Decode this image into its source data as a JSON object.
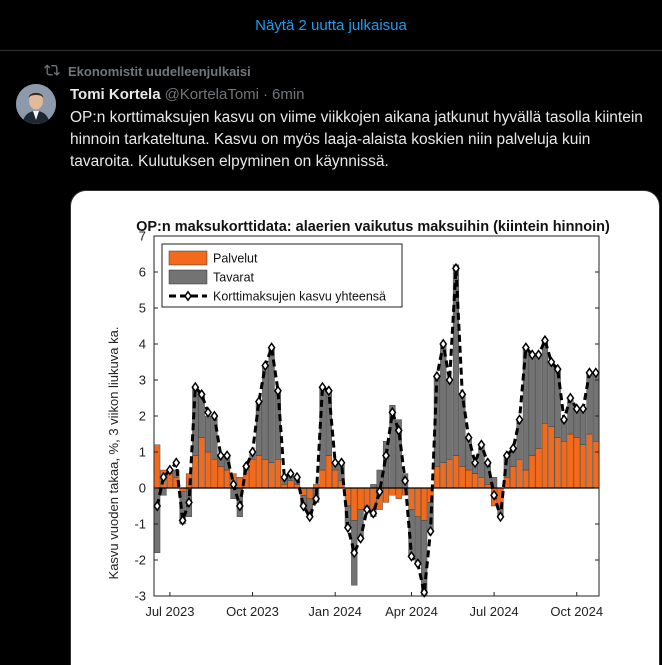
{
  "banner": {
    "show_new": "Näytä 2 uutta julkaisua"
  },
  "repost": {
    "label": "Ekonomistit uudelleenjulkaisi"
  },
  "tweet": {
    "author_name": "Tomi Kortela",
    "handle": "@KortelaTomi",
    "separator": "·",
    "time": "6min",
    "text": "OP:n korttimaksujen kasvu on viime viikkojen aikana jatkunut hyvällä tasolla kiintein hinnoin tarkateltuna. Kasvu on myös laaja-alaista koskien niin palveluja kuin tavaroita. Kulutuksen elpyminen on käynnissä."
  },
  "colors": {
    "accent": "#1d9bf0",
    "services": "#f26b1d",
    "goods": "#737373",
    "total": "#000000"
  },
  "chart_data": {
    "type": "bar",
    "title": "OP:n maksukorttidata: alaerien vaikutus maksuihin (kiintein hinnoin)",
    "ylabel": "Kasvu vuoden takaa, %, 3 viikon liukuva ka.",
    "ylim": [
      -3,
      7
    ],
    "yticks": [
      "-3",
      "-2",
      "-1",
      "0",
      "1",
      "2",
      "3",
      "4",
      "5",
      "6",
      "7"
    ],
    "xtick_labels": [
      "Jul 2023",
      "Oct 2023",
      "Jan 2024",
      "Apr 2024",
      "Jul 2024",
      "Oct 2024"
    ],
    "xtick_index": [
      2,
      15,
      28,
      40,
      53,
      66
    ],
    "legend": [
      "Palvelut",
      "Tavarat",
      "Korttimaksujen kasvu yhteensä"
    ],
    "legend_position": "top-left",
    "series": [
      {
        "name": "Palvelut",
        "values": [
          1.2,
          0.5,
          0.4,
          0.3,
          -0.1,
          0.4,
          0.9,
          1.4,
          1.0,
          0.8,
          0.6,
          0.5,
          0.4,
          0.3,
          0.5,
          0.8,
          0.9,
          0.8,
          0.7,
          0.8,
          0.1,
          0.2,
          0.1,
          -0.2,
          -0.3,
          0.1,
          0.5,
          0.9,
          0.5,
          0.2,
          -0.5,
          -0.9,
          -0.6,
          -0.5,
          -0.8,
          -0.6,
          -0.4,
          -0.2,
          -0.3,
          -0.2,
          -0.6,
          -0.8,
          -0.9,
          -0.4,
          0.6,
          0.7,
          0.8,
          0.9,
          0.6,
          0.5,
          0.4,
          0.3,
          0.1,
          -0.5,
          -0.6,
          0.3,
          0.6,
          0.8,
          0.5,
          0.9,
          1.1,
          1.8,
          1.7,
          1.4,
          1.3,
          1.5,
          1.4,
          1.2,
          1.5,
          1.3
        ]
      },
      {
        "name": "Tavarat",
        "values": [
          -1.8,
          -0.2,
          0.1,
          0.2,
          -0.9,
          -0.8,
          1.9,
          1.2,
          1.0,
          1.2,
          0.3,
          0.4,
          -0.3,
          -0.8,
          0.1,
          0.2,
          1.5,
          2.6,
          3.2,
          1.9,
          0.2,
          0.2,
          0.2,
          -0.3,
          -0.5,
          -0.4,
          2.3,
          1.8,
          0.2,
          0.5,
          -0.6,
          -1.8,
          -0.8,
          -0.1,
          0.1,
          0.5,
          1.3,
          2.3,
          1.9,
          0.4,
          -1.3,
          -1.3,
          -2.1,
          -0.8,
          2.5,
          3.3,
          2.2,
          5.3,
          2.0,
          0.9,
          0.3,
          0.9,
          0.6,
          0.3,
          -0.2,
          0.6,
          0.5,
          1.1,
          3.4,
          2.8,
          2.6,
          2.3,
          1.8,
          1.9,
          0.6,
          1.0,
          0.8,
          1.0,
          1.7,
          1.9
        ]
      },
      {
        "name": "Korttimaksujen kasvu yhteensä",
        "values": [
          -0.5,
          0.3,
          0.5,
          0.7,
          -0.9,
          -0.4,
          2.8,
          2.6,
          2.1,
          2.0,
          0.9,
          0.9,
          0.1,
          -0.5,
          0.6,
          1.0,
          2.4,
          3.4,
          3.9,
          2.7,
          0.3,
          0.4,
          0.3,
          -0.5,
          -0.8,
          -0.3,
          2.8,
          2.7,
          0.7,
          0.7,
          -1.1,
          -1.8,
          -1.4,
          -0.6,
          -0.7,
          -0.1,
          0.9,
          2.1,
          1.6,
          0.2,
          -1.9,
          -2.1,
          -2.9,
          -1.2,
          3.1,
          4.0,
          3.0,
          6.1,
          2.6,
          1.4,
          0.7,
          1.2,
          0.7,
          -0.2,
          -0.8,
          0.9,
          1.1,
          1.9,
          3.9,
          3.7,
          3.7,
          4.1,
          3.5,
          3.3,
          1.9,
          2.5,
          2.2,
          2.2,
          3.2,
          3.2
        ]
      }
    ]
  }
}
